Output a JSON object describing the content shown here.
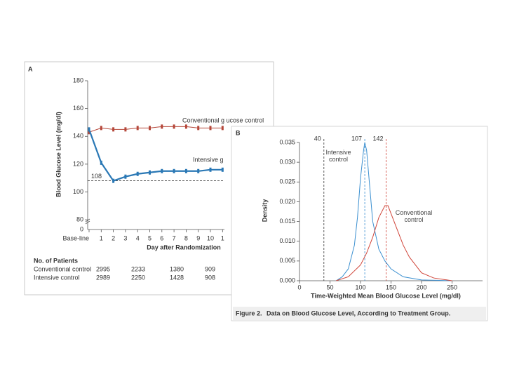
{
  "chart_data": [
    {
      "type": "line",
      "label": "A",
      "ylabel": "Blood Glucose Level (mg/dl)",
      "xlabel": "Day after Randomization",
      "categories": [
        "Base-line",
        "1",
        "2",
        "3",
        "4",
        "5",
        "6",
        "7",
        "8",
        "9",
        "10",
        "1"
      ],
      "series": [
        {
          "name": "Conventional g ucose control",
          "color": "#b5473a",
          "values": [
            143,
            146,
            145,
            145,
            146,
            146,
            147,
            147,
            147,
            146,
            146,
            146
          ]
        },
        {
          "name": "Intensive g",
          "color": "#2a78b5",
          "values": [
            145,
            121,
            108,
            111,
            113,
            114,
            115,
            115,
            115,
            115,
            116,
            116
          ]
        }
      ],
      "ylim": [
        73,
        180
      ],
      "yticks": [
        80,
        100,
        120,
        140,
        160,
        180
      ],
      "y_break_label": 0,
      "reference_line": {
        "value": 108
      }
    },
    {
      "type": "line",
      "label": "B",
      "ylabel": "Density",
      "xlabel": "Time-Weighted Mean Blood Glucose Level (mg/dl)",
      "series": [
        {
          "name": "Intensive control",
          "color": "#3a8fd0",
          "x": [
            60,
            70,
            80,
            90,
            95,
            100,
            105,
            107,
            110,
            115,
            120,
            130,
            140,
            150,
            170,
            200,
            250
          ],
          "values": [
            0,
            0.001,
            0.003,
            0.009,
            0.016,
            0.026,
            0.033,
            0.035,
            0.033,
            0.024,
            0.015,
            0.008,
            0.005,
            0.003,
            0.001,
            0.0002,
            0
          ]
        },
        {
          "name": "Conventional control",
          "color": "#d0453a",
          "x": [
            60,
            80,
            100,
            110,
            120,
            130,
            140,
            145,
            150,
            160,
            170,
            180,
            200,
            220,
            250
          ],
          "values": [
            0,
            0.001,
            0.004,
            0.007,
            0.011,
            0.016,
            0.019,
            0.019,
            0.017,
            0.013,
            0.009,
            0.006,
            0.002,
            0.0007,
            0
          ]
        }
      ],
      "xlim": [
        0,
        300
      ],
      "xticks": [
        0,
        50,
        100,
        150,
        200,
        250
      ],
      "ylim": [
        0,
        0.035
      ],
      "yticks": [
        {
          "value": 0,
          "label": "0.000"
        },
        0.005,
        {
          "value": 0.01,
          "label": "0.010"
        },
        0.015,
        {
          "value": 0.02,
          "label": "0.020"
        },
        0.025,
        {
          "value": 0.03,
          "label": "0.030"
        },
        0.035
      ],
      "reference_lines": [
        {
          "value": 40,
          "color": "#333333"
        },
        {
          "value": 107,
          "color": "#3a8fd0"
        },
        {
          "value": 142,
          "color": "#d0453a"
        }
      ]
    }
  ],
  "patients_table": {
    "title": "No. of Patients",
    "rows": [
      [
        "Conventional control",
        2995,
        2233,
        1380,
        909
      ],
      [
        "Intensive control",
        2989,
        2250,
        1428,
        908
      ]
    ]
  },
  "caption": {
    "label": "Figure 2.",
    "text": "Data on Blood Glucose Level, According to Treatment Group."
  }
}
